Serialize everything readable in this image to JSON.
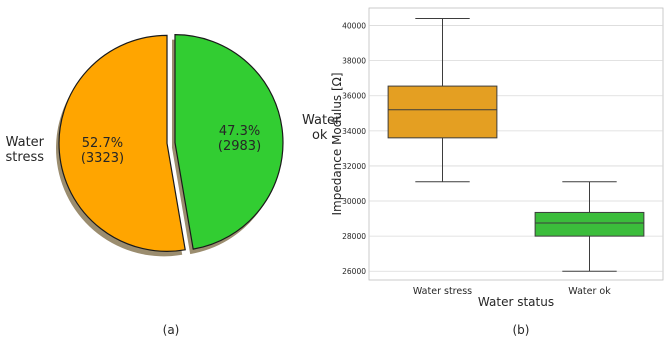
{
  "colors": {
    "water_stress_pie": "#FFA500",
    "water_ok_pie": "#32CD32",
    "water_stress_box": "#E49F22",
    "water_ok_box": "#3BBD3B",
    "pie_shadow": "#9B8D6F",
    "grid": "#D9D9D9"
  },
  "chart_data": [
    {
      "type": "pie",
      "panel_label": "(a)",
      "slices": [
        {
          "label_lines": [
            "Water",
            "stress"
          ],
          "percent_text": "52.7%",
          "count_text": "(3323)",
          "value": 3323,
          "percent": 52.7,
          "exploded": true,
          "shadow": true
        },
        {
          "label_lines": [
            "Water",
            "ok"
          ],
          "percent_text": "47.3%",
          "count_text": "(2983)",
          "value": 2983,
          "percent": 47.3,
          "exploded": true,
          "shadow": true
        }
      ]
    },
    {
      "type": "box",
      "panel_label": "(b)",
      "xlabel": "Water status",
      "ylabel": "Impedance Modulus [Ω]",
      "categories": [
        "Water stress",
        "Water ok"
      ],
      "ylim": [
        25500,
        41000
      ],
      "yticks": [
        26000,
        28000,
        30000,
        32000,
        34000,
        36000,
        38000,
        40000
      ],
      "grid": "horizontal",
      "boxes": [
        {
          "name": "Water stress",
          "whisker_low": 31100,
          "q1": 33600,
          "median": 35200,
          "q3": 36550,
          "whisker_high": 40400
        },
        {
          "name": "Water ok",
          "whisker_low": 26000,
          "q1": 28000,
          "median": 28750,
          "q3": 29350,
          "whisker_high": 31100
        }
      ]
    }
  ]
}
